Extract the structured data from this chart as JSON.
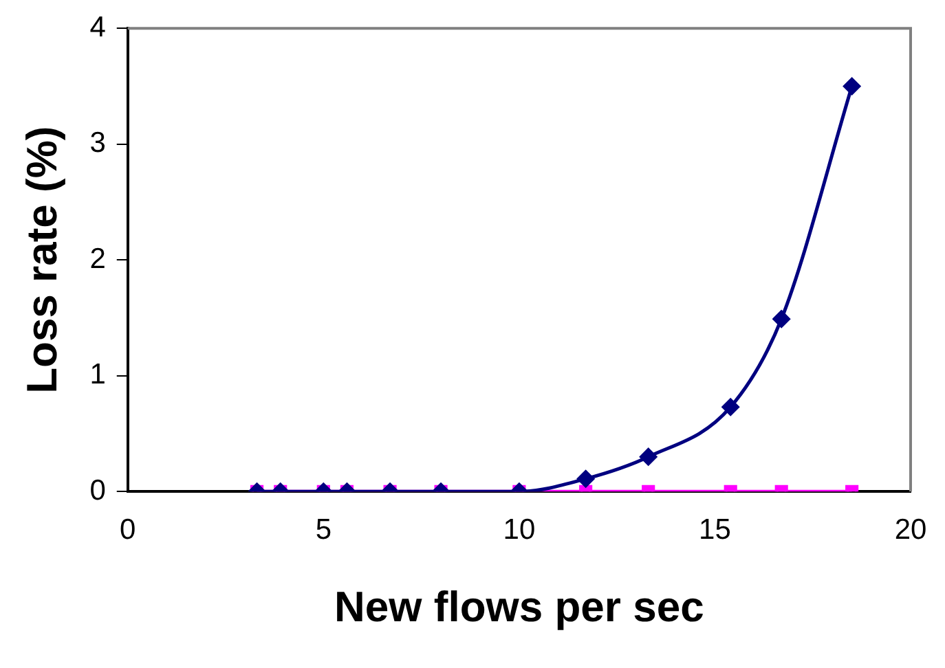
{
  "chart_data": {
    "type": "line",
    "xlabel": "New flows per sec",
    "ylabel": "Loss rate (%)",
    "x": [
      3.3,
      3.9,
      5.0,
      5.6,
      6.7,
      8.0,
      10.0,
      11.7,
      13.3,
      15.4,
      16.7,
      18.5
    ],
    "series": [
      {
        "color": "#000080",
        "marker": "diamond",
        "values": [
          0,
          0,
          0,
          0,
          0,
          0,
          0,
          0.11,
          0.3,
          0.73,
          1.49,
          3.5
        ]
      },
      {
        "color": "#ff00ff",
        "marker": "square",
        "values": [
          0,
          0,
          0,
          0,
          0,
          0,
          0,
          0,
          0,
          0,
          0,
          0
        ]
      }
    ],
    "xlim": [
      0,
      20
    ],
    "xticks": [
      0,
      5,
      10,
      15,
      20
    ],
    "ylim": [
      0,
      4
    ],
    "yticks": [
      0,
      1,
      2,
      3,
      4
    ],
    "grid": false,
    "legend": false
  }
}
